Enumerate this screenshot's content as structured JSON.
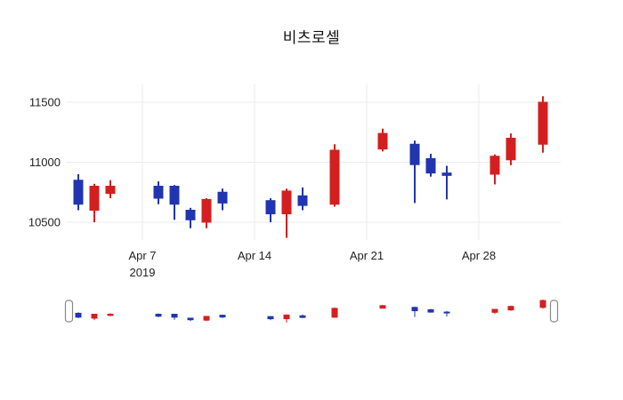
{
  "chart_data": {
    "type": "candlestick",
    "title": "비츠로셀",
    "legend": "none",
    "grid": "on",
    "range_slider": true,
    "colors": {
      "increasing": "#d31f1f",
      "decreasing": "#2135b0",
      "grid": "#ebebeb",
      "text": "#222222",
      "background": "#ffffff",
      "slider_handle_stroke": "#888888"
    },
    "y_axis": {
      "ticks": [
        10500,
        11000,
        11500
      ],
      "range": [
        10300,
        11650
      ]
    },
    "x_axis": {
      "ticks": [
        {
          "date": "2019-04-07",
          "label": "Apr 7",
          "sublabel": "2019"
        },
        {
          "date": "2019-04-14",
          "label": "Apr 14",
          "sublabel": ""
        },
        {
          "date": "2019-04-21",
          "label": "Apr 21",
          "sublabel": ""
        },
        {
          "date": "2019-04-28",
          "label": "Apr 28",
          "sublabel": ""
        }
      ]
    },
    "candles": [
      {
        "date": "2019-04-03",
        "open": 10850,
        "high": 10900,
        "low": 10600,
        "close": 10650
      },
      {
        "date": "2019-04-04",
        "open": 10600,
        "high": 10820,
        "low": 10500,
        "close": 10800
      },
      {
        "date": "2019-04-05",
        "open": 10740,
        "high": 10850,
        "low": 10700,
        "close": 10800
      },
      {
        "date": "2019-04-08",
        "open": 10800,
        "high": 10840,
        "low": 10650,
        "close": 10700
      },
      {
        "date": "2019-04-09",
        "open": 10800,
        "high": 10810,
        "low": 10520,
        "close": 10650
      },
      {
        "date": "2019-04-10",
        "open": 10600,
        "high": 10620,
        "low": 10450,
        "close": 10520
      },
      {
        "date": "2019-04-11",
        "open": 10500,
        "high": 10700,
        "low": 10450,
        "close": 10690
      },
      {
        "date": "2019-04-12",
        "open": 10750,
        "high": 10780,
        "low": 10600,
        "close": 10660
      },
      {
        "date": "2019-04-15",
        "open": 10680,
        "high": 10700,
        "low": 10500,
        "close": 10570
      },
      {
        "date": "2019-04-16",
        "open": 10570,
        "high": 10780,
        "low": 10370,
        "close": 10760
      },
      {
        "date": "2019-04-17",
        "open": 10720,
        "high": 10790,
        "low": 10600,
        "close": 10640
      },
      {
        "date": "2019-04-19",
        "open": 10650,
        "high": 11150,
        "low": 10630,
        "close": 11100
      },
      {
        "date": "2019-04-22",
        "open": 11110,
        "high": 11280,
        "low": 11090,
        "close": 11240
      },
      {
        "date": "2019-04-24",
        "open": 11150,
        "high": 11180,
        "low": 10660,
        "close": 10980
      },
      {
        "date": "2019-04-25",
        "open": 11030,
        "high": 11070,
        "low": 10880,
        "close": 10910
      },
      {
        "date": "2019-04-26",
        "open": 10910,
        "high": 10970,
        "low": 10690,
        "close": 10890
      },
      {
        "date": "2019-04-29",
        "open": 10900,
        "high": 11065,
        "low": 10815,
        "close": 11050
      },
      {
        "date": "2019-04-30",
        "open": 11020,
        "high": 11240,
        "low": 10975,
        "close": 11200
      },
      {
        "date": "2019-05-02",
        "open": 11150,
        "high": 11550,
        "low": 11080,
        "close": 11500
      }
    ]
  }
}
